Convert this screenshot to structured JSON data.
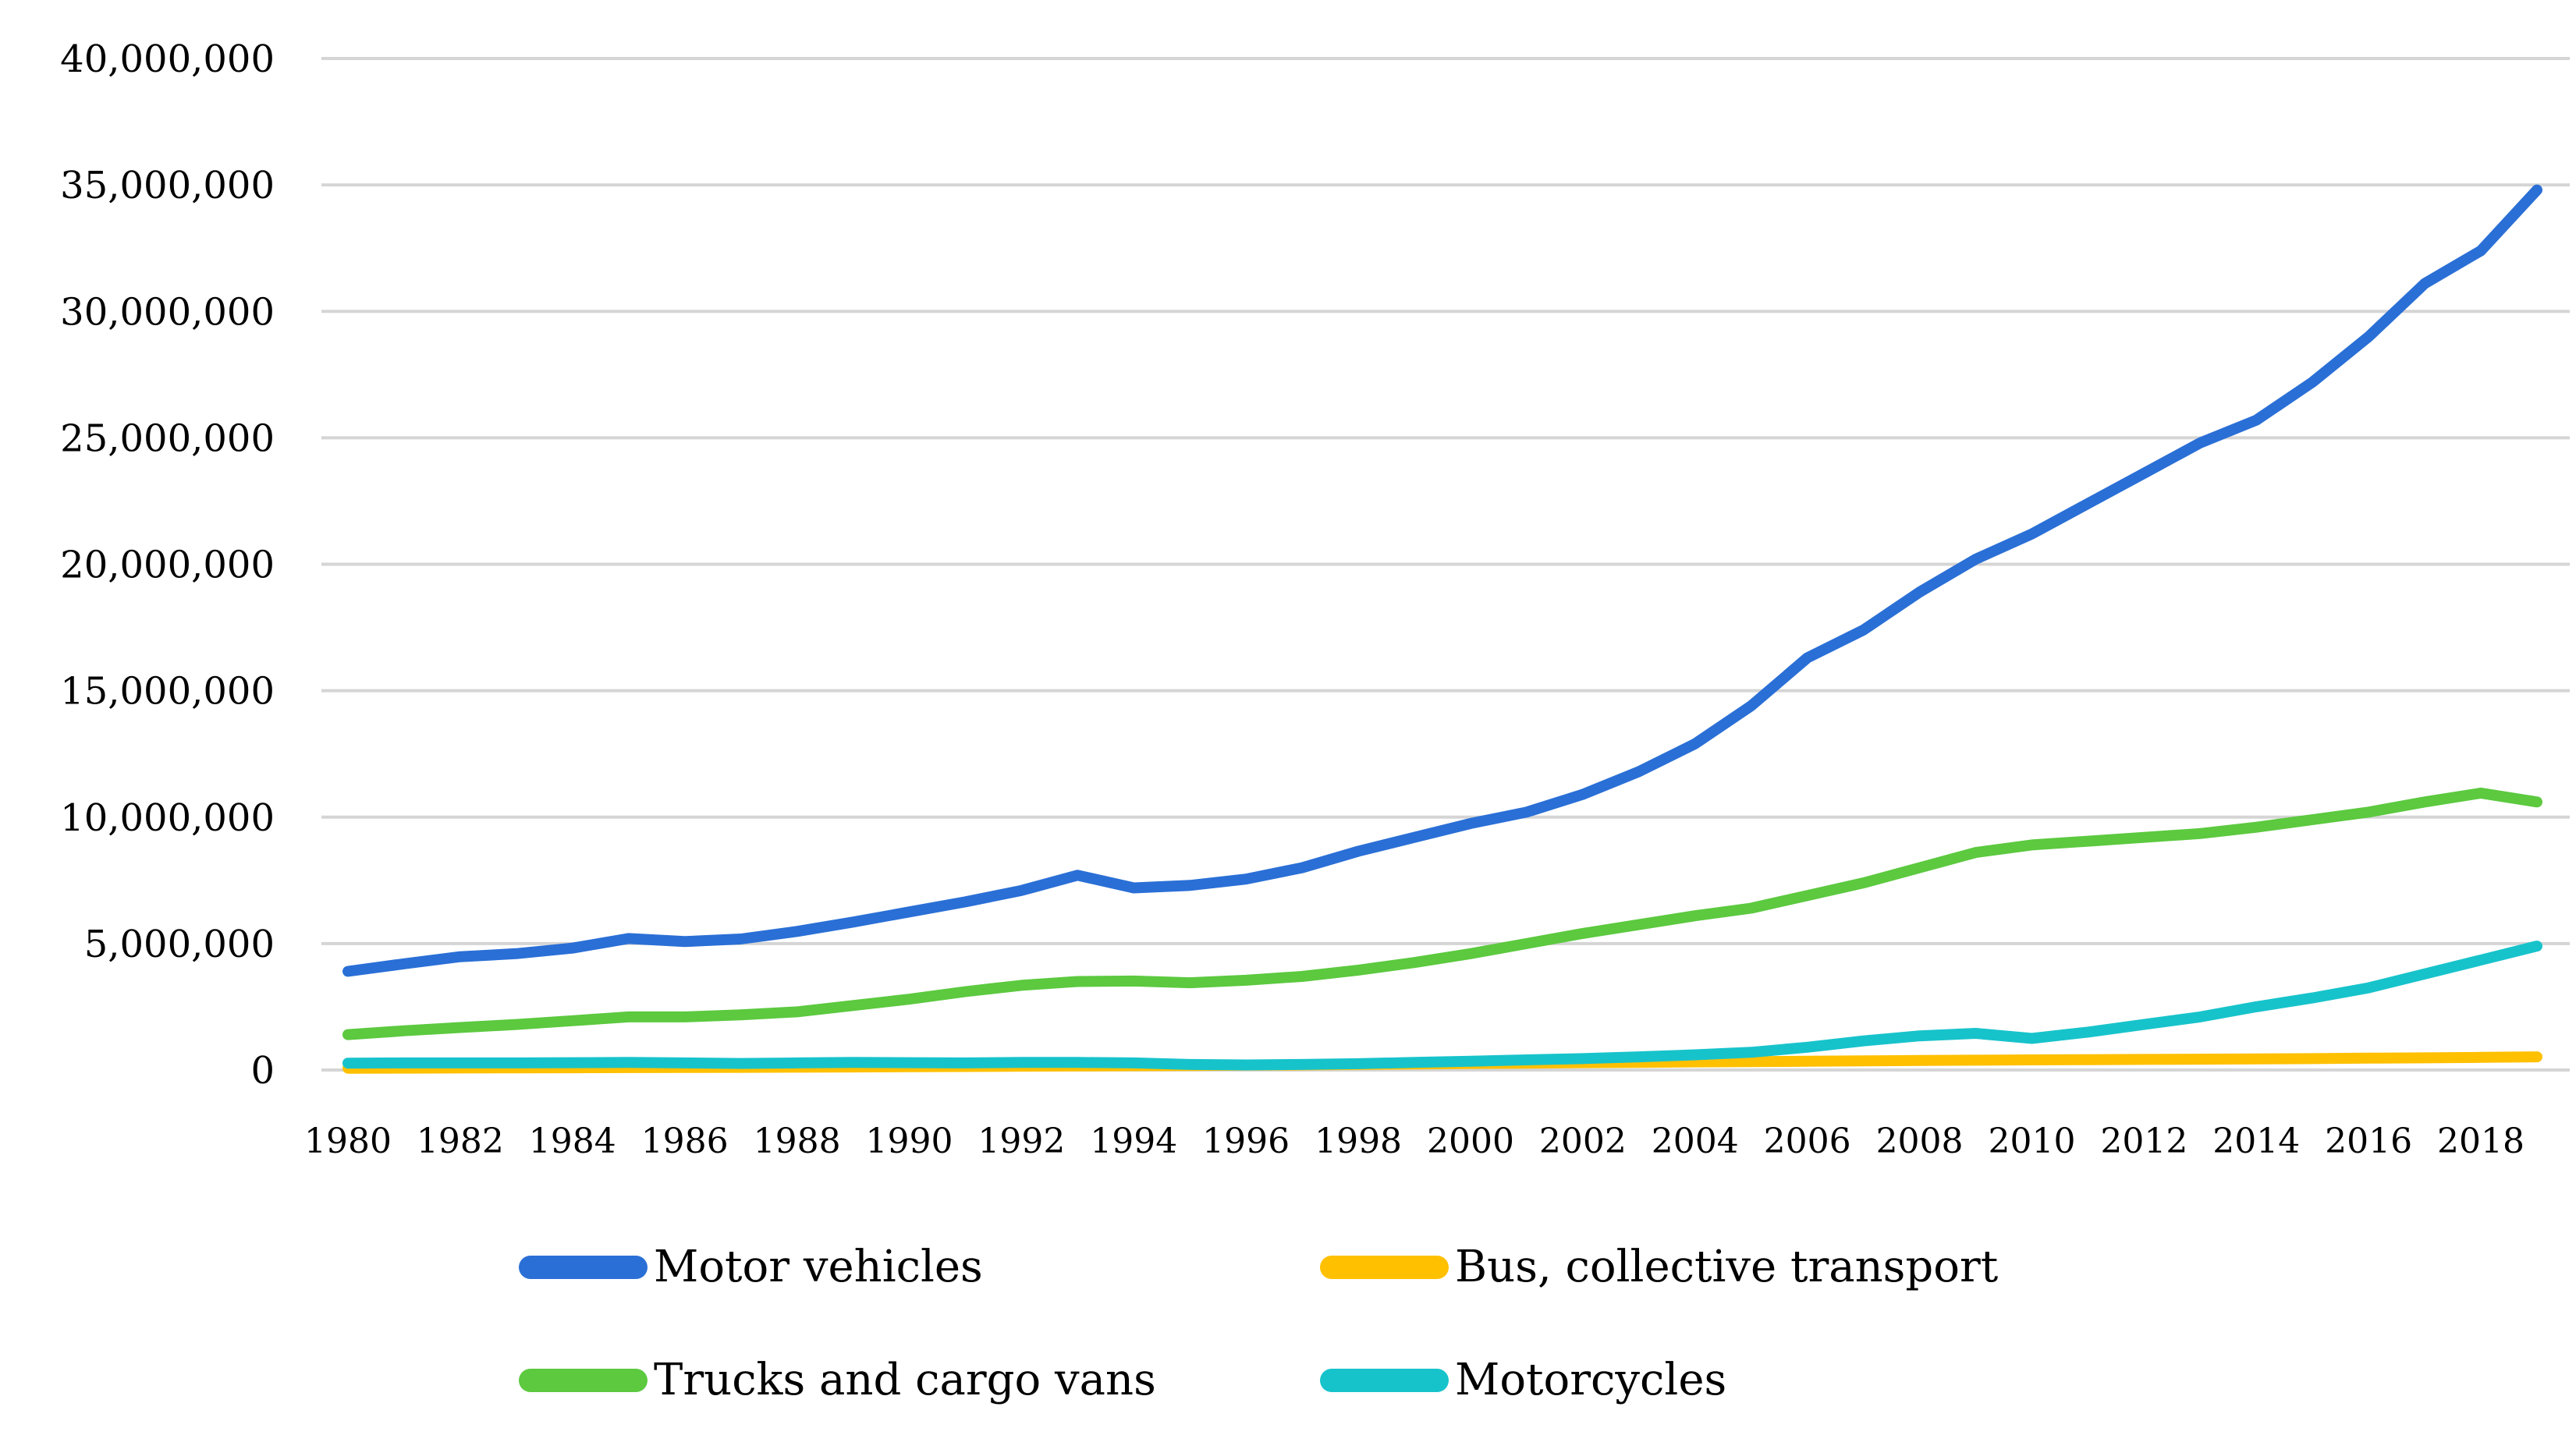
{
  "chart_data": {
    "type": "line",
    "title": "",
    "xlabel": "",
    "ylabel": "",
    "x": [
      1980,
      1981,
      1982,
      1983,
      1984,
      1985,
      1986,
      1987,
      1988,
      1989,
      1990,
      1991,
      1992,
      1993,
      1994,
      1995,
      1996,
      1997,
      1998,
      1999,
      2000,
      2001,
      2002,
      2003,
      2004,
      2005,
      2006,
      2007,
      2008,
      2009,
      2010,
      2011,
      2012,
      2013,
      2014,
      2015,
      2016,
      2017,
      2018,
      2019
    ],
    "x_tick_labels": [
      "1980",
      "1982",
      "1984",
      "1986",
      "1988",
      "1990",
      "1992",
      "1994",
      "1996",
      "1998",
      "2000",
      "2002",
      "2004",
      "2006",
      "2008",
      "2010",
      "2012",
      "2014",
      "2016",
      "2018"
    ],
    "y_tick_labels": [
      "0",
      "5,000,000",
      "10,000,000",
      "15,000,000",
      "20,000,000",
      "25,000,000",
      "30,000,000",
      "35,000,000",
      "40,000,000"
    ],
    "ylim": [
      0,
      40000000
    ],
    "grid": "horizontal-only",
    "gridline_color": "#D5D5D5",
    "legend_position": "bottom",
    "series": [
      {
        "name": "Motor vehicles",
        "color": "#2A6FD6",
        "values": [
          3900000,
          4200000,
          4480000,
          4600000,
          4820000,
          5200000,
          5080000,
          5180000,
          5480000,
          5850000,
          6250000,
          6650000,
          7100000,
          7700000,
          7200000,
          7300000,
          7550000,
          8000000,
          8650000,
          9200000,
          9750000,
          10200000,
          10900000,
          11800000,
          12900000,
          14400000,
          16300000,
          17400000,
          18900000,
          20200000,
          21200000,
          22400000,
          23600000,
          24800000,
          25700000,
          27200000,
          29000000,
          31100000,
          32400000,
          34800000
        ]
      },
      {
        "name": "Bus, collective transport",
        "color": "#FFC000",
        "values": [
          70000,
          75000,
          80000,
          85000,
          90000,
          95000,
          100000,
          105000,
          110000,
          120000,
          130000,
          140000,
          150000,
          160000,
          170000,
          180000,
          190000,
          200000,
          220000,
          240000,
          260000,
          270000,
          290000,
          300000,
          320000,
          330000,
          350000,
          360000,
          380000,
          390000,
          400000,
          410000,
          420000,
          430000,
          440000,
          450000,
          470000,
          480000,
          500000,
          520000
        ]
      },
      {
        "name": "Trucks and cargo vans",
        "color": "#5CC93F",
        "values": [
          1400000,
          1550000,
          1680000,
          1800000,
          1950000,
          2100000,
          2100000,
          2180000,
          2300000,
          2550000,
          2800000,
          3100000,
          3350000,
          3500000,
          3520000,
          3450000,
          3550000,
          3700000,
          3950000,
          4250000,
          4600000,
          5000000,
          5400000,
          5750000,
          6100000,
          6400000,
          6900000,
          7400000,
          8000000,
          8600000,
          8900000,
          9050000,
          9200000,
          9350000,
          9600000,
          9900000,
          10200000,
          10600000,
          10950000,
          10600000
        ]
      },
      {
        "name": "Motorcycles",
        "color": "#17C3CB",
        "values": [
          270000,
          280000,
          280000,
          280000,
          290000,
          300000,
          280000,
          260000,
          280000,
          300000,
          290000,
          280000,
          300000,
          300000,
          280000,
          220000,
          200000,
          220000,
          250000,
          300000,
          350000,
          400000,
          450000,
          520000,
          600000,
          700000,
          900000,
          1150000,
          1350000,
          1450000,
          1250000,
          1500000,
          1800000,
          2100000,
          2500000,
          2850000,
          3250000,
          3800000,
          4350000,
          4900000
        ]
      }
    ]
  }
}
